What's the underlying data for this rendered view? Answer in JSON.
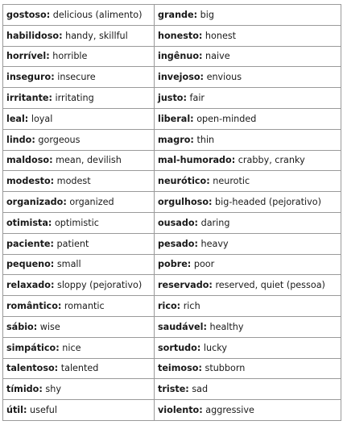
{
  "vocabulary": {
    "rows": [
      {
        "left": {
          "term": "gostoso:",
          "meaning": " delicious (alimento)"
        },
        "right": {
          "term": "grande:",
          "meaning": " big"
        }
      },
      {
        "left": {
          "term": "habilidoso:",
          "meaning": " handy, skillful"
        },
        "right": {
          "term": "honesto:",
          "meaning": " honest"
        }
      },
      {
        "left": {
          "term": "horrível:",
          "meaning": " horrible"
        },
        "right": {
          "term": "ingênuo:",
          "meaning": " naive"
        }
      },
      {
        "left": {
          "term": "inseguro:",
          "meaning": " insecure"
        },
        "right": {
          "term": "invejoso:",
          "meaning": " envious"
        }
      },
      {
        "left": {
          "term": "irritante:",
          "meaning": " irritating"
        },
        "right": {
          "term": "justo:",
          "meaning": " fair"
        }
      },
      {
        "left": {
          "term": "leal:",
          "meaning": " loyal"
        },
        "right": {
          "term": "liberal:",
          "meaning": " open-minded"
        }
      },
      {
        "left": {
          "term": "lindo:",
          "meaning": " gorgeous"
        },
        "right": {
          "term": "magro:",
          "meaning": " thin"
        }
      },
      {
        "left": {
          "term": "maldoso:",
          "meaning": " mean, devilish"
        },
        "right": {
          "term": "mal-humorado:",
          "meaning": " crabby, cranky"
        }
      },
      {
        "left": {
          "term": "modesto:",
          "meaning": " modest"
        },
        "right": {
          "term": "neurótico:",
          "meaning": " neurotic"
        }
      },
      {
        "left": {
          "term": "organizado:",
          "meaning": " organized"
        },
        "right": {
          "term": "orgulhoso:",
          "meaning": " big-headed (pejorativo)"
        }
      },
      {
        "left": {
          "term": "otimista:",
          "meaning": " optimistic"
        },
        "right": {
          "term": "ousado:",
          "meaning": " daring"
        }
      },
      {
        "left": {
          "term": "paciente:",
          "meaning": " patient"
        },
        "right": {
          "term": "pesado:",
          "meaning": " heavy"
        }
      },
      {
        "left": {
          "term": "pequeno:",
          "meaning": " small"
        },
        "right": {
          "term": "pobre:",
          "meaning": " poor"
        }
      },
      {
        "left": {
          "term": "relaxado:",
          "meaning": " sloppy (pejorativo)"
        },
        "right": {
          "term": "reservado:",
          "meaning": " reserved, quiet (pessoa)"
        }
      },
      {
        "left": {
          "term": "romântico:",
          "meaning": " romantic"
        },
        "right": {
          "term": "rico:",
          "meaning": " rich"
        }
      },
      {
        "left": {
          "term": "sábio:",
          "meaning": " wise"
        },
        "right": {
          "term": "saudável:",
          "meaning": " healthy"
        }
      },
      {
        "left": {
          "term": "simpático:",
          "meaning": " nice"
        },
        "right": {
          "term": "sortudo:",
          "meaning": " lucky"
        }
      },
      {
        "left": {
          "term": "talentoso:",
          "meaning": " talented"
        },
        "right": {
          "term": "teimoso:",
          "meaning": " stubborn"
        }
      },
      {
        "left": {
          "term": "tímido:",
          "meaning": " shy"
        },
        "right": {
          "term": "triste:",
          "meaning": " sad"
        }
      },
      {
        "left": {
          "term": "útil:",
          "meaning": " useful"
        },
        "right": {
          "term": "violento:",
          "meaning": " aggressive"
        }
      }
    ]
  }
}
